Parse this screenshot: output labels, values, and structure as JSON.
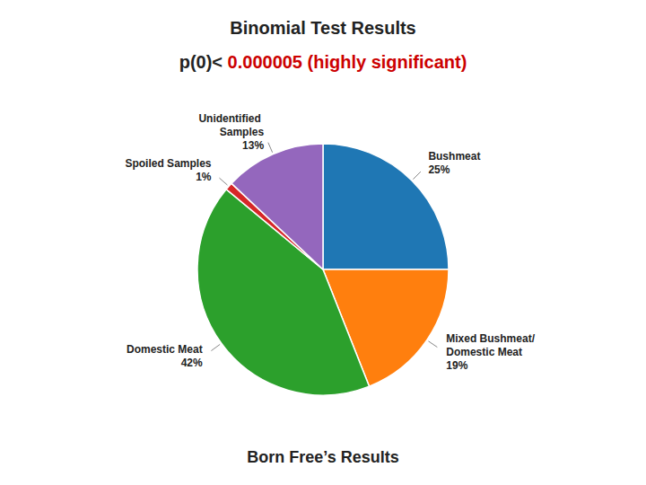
{
  "chart_data": {
    "type": "pie",
    "title": "Binomial Test Results",
    "annotations": [
      {
        "text": "p(0)< "
      },
      {
        "text": "0.000005 (highly significant)",
        "color": "#CC0000"
      }
    ],
    "subtitle": "Born Free’s Results",
    "categories": [
      "Bushmeat",
      "Mixed Bushmeat/Domestic Meat",
      "Domestic Meat",
      "Spoiled Samples",
      "Unidentified Samples"
    ],
    "values": [
      25,
      19,
      42,
      1,
      13
    ],
    "value_labels": [
      "25%",
      "19%",
      "42%",
      "1%",
      "13%"
    ],
    "data_labels": true
  }
}
